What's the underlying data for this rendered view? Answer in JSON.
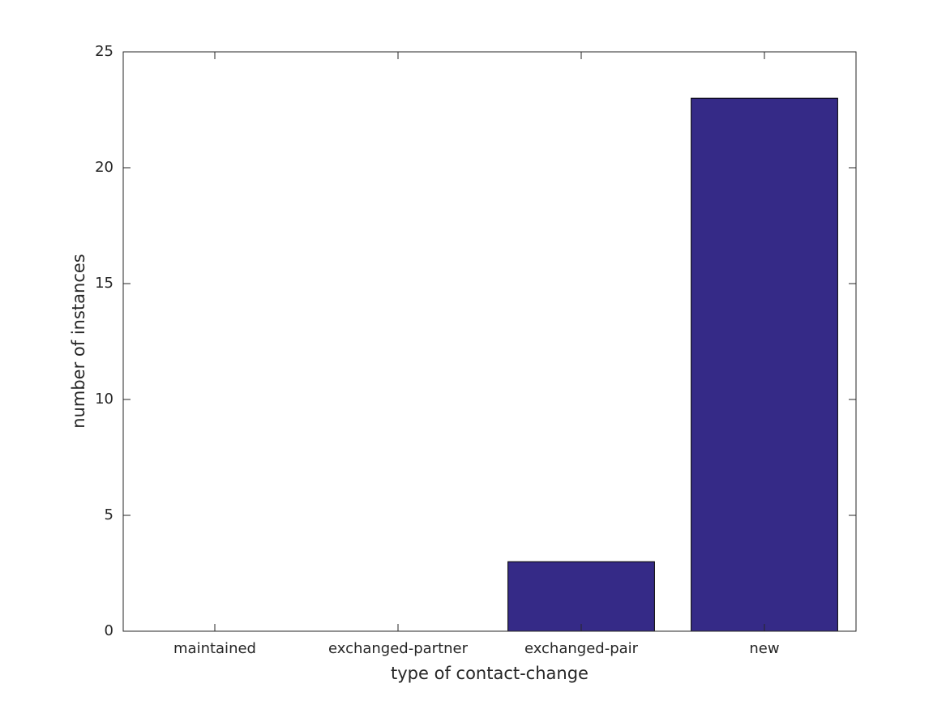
{
  "chart_data": {
    "type": "bar",
    "x_label": "type of contact-change",
    "y_label": "number of instances",
    "categories": [
      "maintained",
      "exchanged-partner",
      "exchanged-pair",
      "new"
    ],
    "values": [
      0,
      0,
      3,
      23
    ],
    "color": "#352a87",
    "ylim": [
      0,
      25
    ],
    "yticks": [
      0,
      5,
      10,
      15,
      20,
      25
    ],
    "grid": false
  }
}
